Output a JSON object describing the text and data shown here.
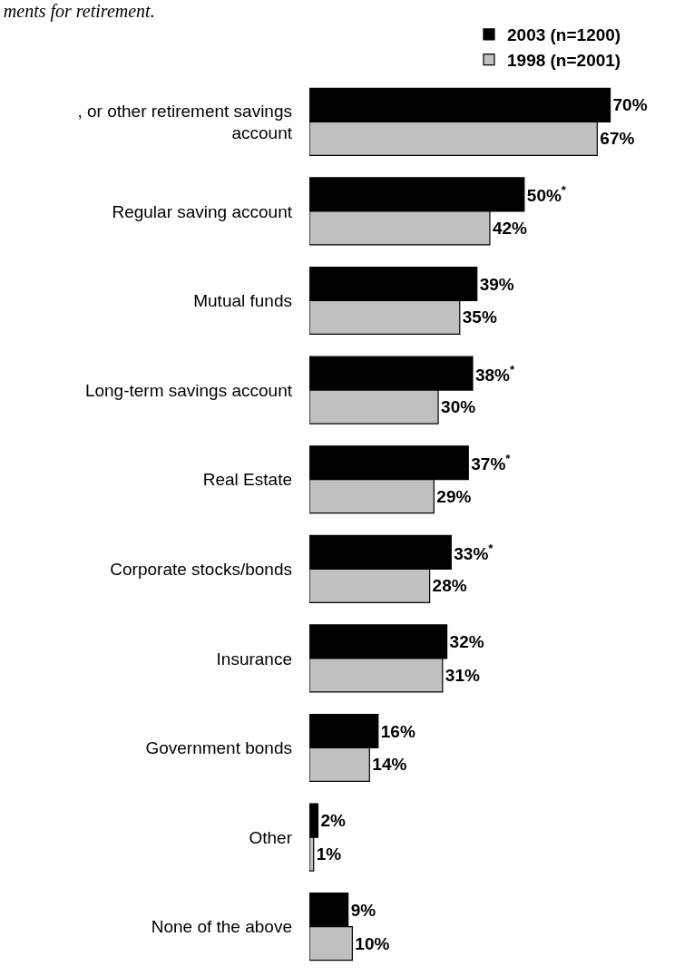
{
  "chart_data": {
    "type": "bar",
    "orientation": "horizontal",
    "title": "ments for retirement.",
    "categories": [
      ", or other retirement savings account",
      "Regular saving account",
      "Mutual funds",
      "Long-term savings account",
      "Real Estate",
      "Corporate stocks/bonds",
      "Insurance",
      "Government bonds",
      "Other",
      "None of the above"
    ],
    "series": [
      {
        "name": "2003 (n=1200)",
        "color": "#000000",
        "values": [
          70,
          50,
          39,
          38,
          37,
          33,
          32,
          16,
          2,
          9
        ],
        "value_labels": [
          "70%",
          "50%$^{*}$",
          "39%",
          "38%$^{*}$",
          "37%$^{*}$",
          "33%$^{*}$",
          "32%",
          "16%",
          "2%",
          "9%"
        ]
      },
      {
        "name": "1998 (n=2001)",
        "color": "#c0c0c0",
        "values": [
          67,
          42,
          35,
          30,
          29,
          28,
          31,
          14,
          1,
          10
        ],
        "value_labels": [
          "67%",
          "42%",
          "35%",
          "30%",
          "29%",
          "28%",
          "31%",
          "14%",
          "1%",
          "10%"
        ]
      }
    ],
    "tick_labels": false,
    "legend": "top right"
  }
}
